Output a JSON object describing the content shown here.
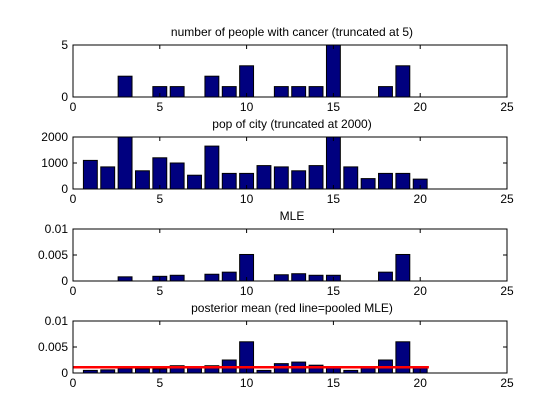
{
  "chart_data": [
    {
      "type": "bar",
      "title": "number of people with cancer (truncated at 5)",
      "xlim": [
        0,
        25
      ],
      "ylim": [
        0,
        5
      ],
      "xticks": [
        "0",
        "5",
        "10",
        "15",
        "20",
        "25"
      ],
      "yticks": [
        "0",
        "5"
      ],
      "x": [
        1,
        2,
        3,
        4,
        5,
        6,
        7,
        8,
        9,
        10,
        11,
        12,
        13,
        14,
        15,
        16,
        17,
        18,
        19,
        20
      ],
      "values": [
        0,
        0,
        2,
        0,
        1,
        1,
        0,
        2,
        1,
        3,
        0,
        1,
        1,
        1,
        5,
        0,
        0,
        1,
        3,
        0
      ],
      "bar_color": "#00007f"
    },
    {
      "type": "bar",
      "title": "pop of city (truncated at 2000)",
      "xlim": [
        0,
        25
      ],
      "ylim": [
        0,
        2000
      ],
      "xticks": [
        "0",
        "5",
        "10",
        "15",
        "20",
        "25"
      ],
      "yticks": [
        "0",
        "1000",
        "2000"
      ],
      "x": [
        1,
        2,
        3,
        4,
        5,
        6,
        7,
        8,
        9,
        10,
        11,
        12,
        13,
        14,
        15,
        16,
        17,
        18,
        19,
        20
      ],
      "values": [
        1100,
        850,
        2000,
        700,
        1200,
        1000,
        530,
        1650,
        600,
        600,
        900,
        850,
        700,
        900,
        2000,
        850,
        400,
        600,
        600,
        380
      ],
      "bar_color": "#00007f"
    },
    {
      "type": "bar",
      "title": "MLE",
      "xlim": [
        0,
        25
      ],
      "ylim": [
        0,
        0.01
      ],
      "xticks": [
        "0",
        "5",
        "10",
        "15",
        "20",
        "25"
      ],
      "yticks": [
        "0",
        "0.005",
        "0.01"
      ],
      "x": [
        1,
        2,
        3,
        4,
        5,
        6,
        7,
        8,
        9,
        10,
        11,
        12,
        13,
        14,
        15,
        16,
        17,
        18,
        19,
        20
      ],
      "values": [
        0,
        0,
        0.0008,
        0,
        0.0009,
        0.0011,
        0,
        0.0013,
        0.0017,
        0.0051,
        0,
        0.0012,
        0.0014,
        0.0011,
        0.0011,
        0,
        0,
        0.0017,
        0.0051,
        0
      ],
      "bar_color": "#00007f"
    },
    {
      "type": "bar",
      "title": "posterior mean (red line=pooled MLE)",
      "xlim": [
        0,
        25
      ],
      "ylim": [
        0,
        0.01
      ],
      "xticks": [
        "0",
        "5",
        "10",
        "15",
        "20",
        "25"
      ],
      "yticks": [
        "0",
        "0.005",
        "0.01"
      ],
      "x": [
        1,
        2,
        3,
        4,
        5,
        6,
        7,
        8,
        9,
        10,
        11,
        12,
        13,
        14,
        15,
        16,
        17,
        18,
        19,
        20
      ],
      "values": [
        0.0005,
        0.0006,
        0.0009,
        0.0008,
        0.0008,
        0.0014,
        0.0011,
        0.0014,
        0.0025,
        0.006,
        0.0005,
        0.0018,
        0.0021,
        0.0015,
        0.0012,
        0.0005,
        0.0011,
        0.0025,
        0.006,
        0.0011
      ],
      "reference_line": {
        "y": 0.0011,
        "color": "#ff0000"
      },
      "bar_color": "#00007f"
    }
  ]
}
